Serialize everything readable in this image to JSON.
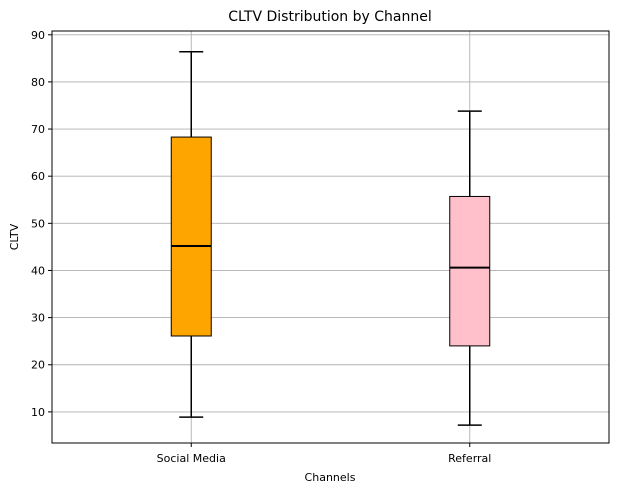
{
  "chart_data": {
    "type": "box",
    "title": "CLTV Distribution by Channel",
    "xlabel": "Channels",
    "ylabel": "CLTV",
    "ylim": [
      3.4,
      90.8
    ],
    "yticks": [
      10,
      20,
      30,
      40,
      50,
      60,
      70,
      80,
      90
    ],
    "grid": true,
    "categories": [
      "Social Media",
      "Referral"
    ],
    "boxes": [
      {
        "category": "Social Media",
        "whisker_low": 8.9,
        "q1": 26.1,
        "median": 45.2,
        "q3": 68.3,
        "whisker_high": 86.4,
        "color": "#ffa500"
      },
      {
        "category": "Referral",
        "whisker_low": 7.2,
        "q1": 24.0,
        "median": 40.6,
        "q3": 55.7,
        "whisker_high": 73.8,
        "color": "#ffc0cb"
      }
    ]
  }
}
